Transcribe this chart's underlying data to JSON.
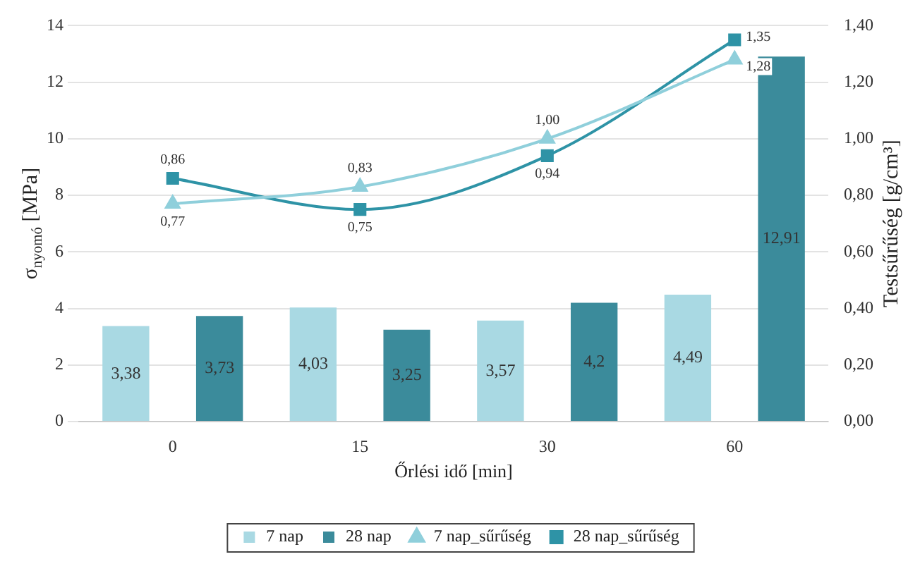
{
  "chart_data": {
    "type": "bar",
    "xlabel": "Őrlési idő [min]",
    "ylabel": "σ$_{nyomó}$ [MPa]",
    "y2label": "Testsűrűség [g/cm³]",
    "categories": [
      "0",
      "15",
      "30",
      "60"
    ],
    "series": [
      {
        "name": "7 nap",
        "color": "#a9d9e3",
        "values": [
          3.38,
          4.03,
          3.57,
          4.49
        ],
        "value_labels": [
          "3,38",
          "4,03",
          "3,57",
          "4,49"
        ]
      },
      {
        "name": "28 nap",
        "color": "#3b8b9b",
        "values": [
          3.73,
          3.25,
          4.2,
          12.91
        ],
        "value_labels": [
          "3,73",
          "3,25",
          "4,2",
          "12,91"
        ]
      },
      {
        "name": "7 nap_sűrűség",
        "type": "line",
        "axis": "y2",
        "marker": "triangle",
        "color": "#8fcfdb",
        "values": [
          0.77,
          0.83,
          1.0,
          1.28
        ],
        "value_labels": [
          "0,77",
          "0,83",
          "1,00",
          "1,28"
        ]
      },
      {
        "name": "28 nap_sűrűség",
        "type": "line",
        "axis": "y2",
        "marker": "square",
        "color": "#2e93a6",
        "values": [
          0.86,
          0.75,
          0.94,
          1.35
        ],
        "value_labels": [
          "0,86",
          "0,75",
          "0,94",
          "1,35"
        ]
      }
    ],
    "ylim": [
      0,
      14
    ],
    "yticks": [
      0,
      2,
      4,
      6,
      8,
      10,
      12,
      14
    ],
    "y2lim": [
      0,
      1.4
    ],
    "y2ticks": [
      {
        "value": 0,
        "label": "0,00"
      },
      {
        "value": 0.2,
        "label": "0,20"
      },
      {
        "value": 0.4,
        "label": "0,40"
      },
      {
        "value": 0.6,
        "label": "0,60"
      },
      {
        "value": 0.8,
        "label": "0,80"
      },
      {
        "value": 1.0,
        "label": "1,00"
      },
      {
        "value": 1.2,
        "label": "1,20"
      },
      {
        "value": 1.4,
        "label": "1,40"
      }
    ],
    "grid": "y",
    "legend": "bottom"
  }
}
